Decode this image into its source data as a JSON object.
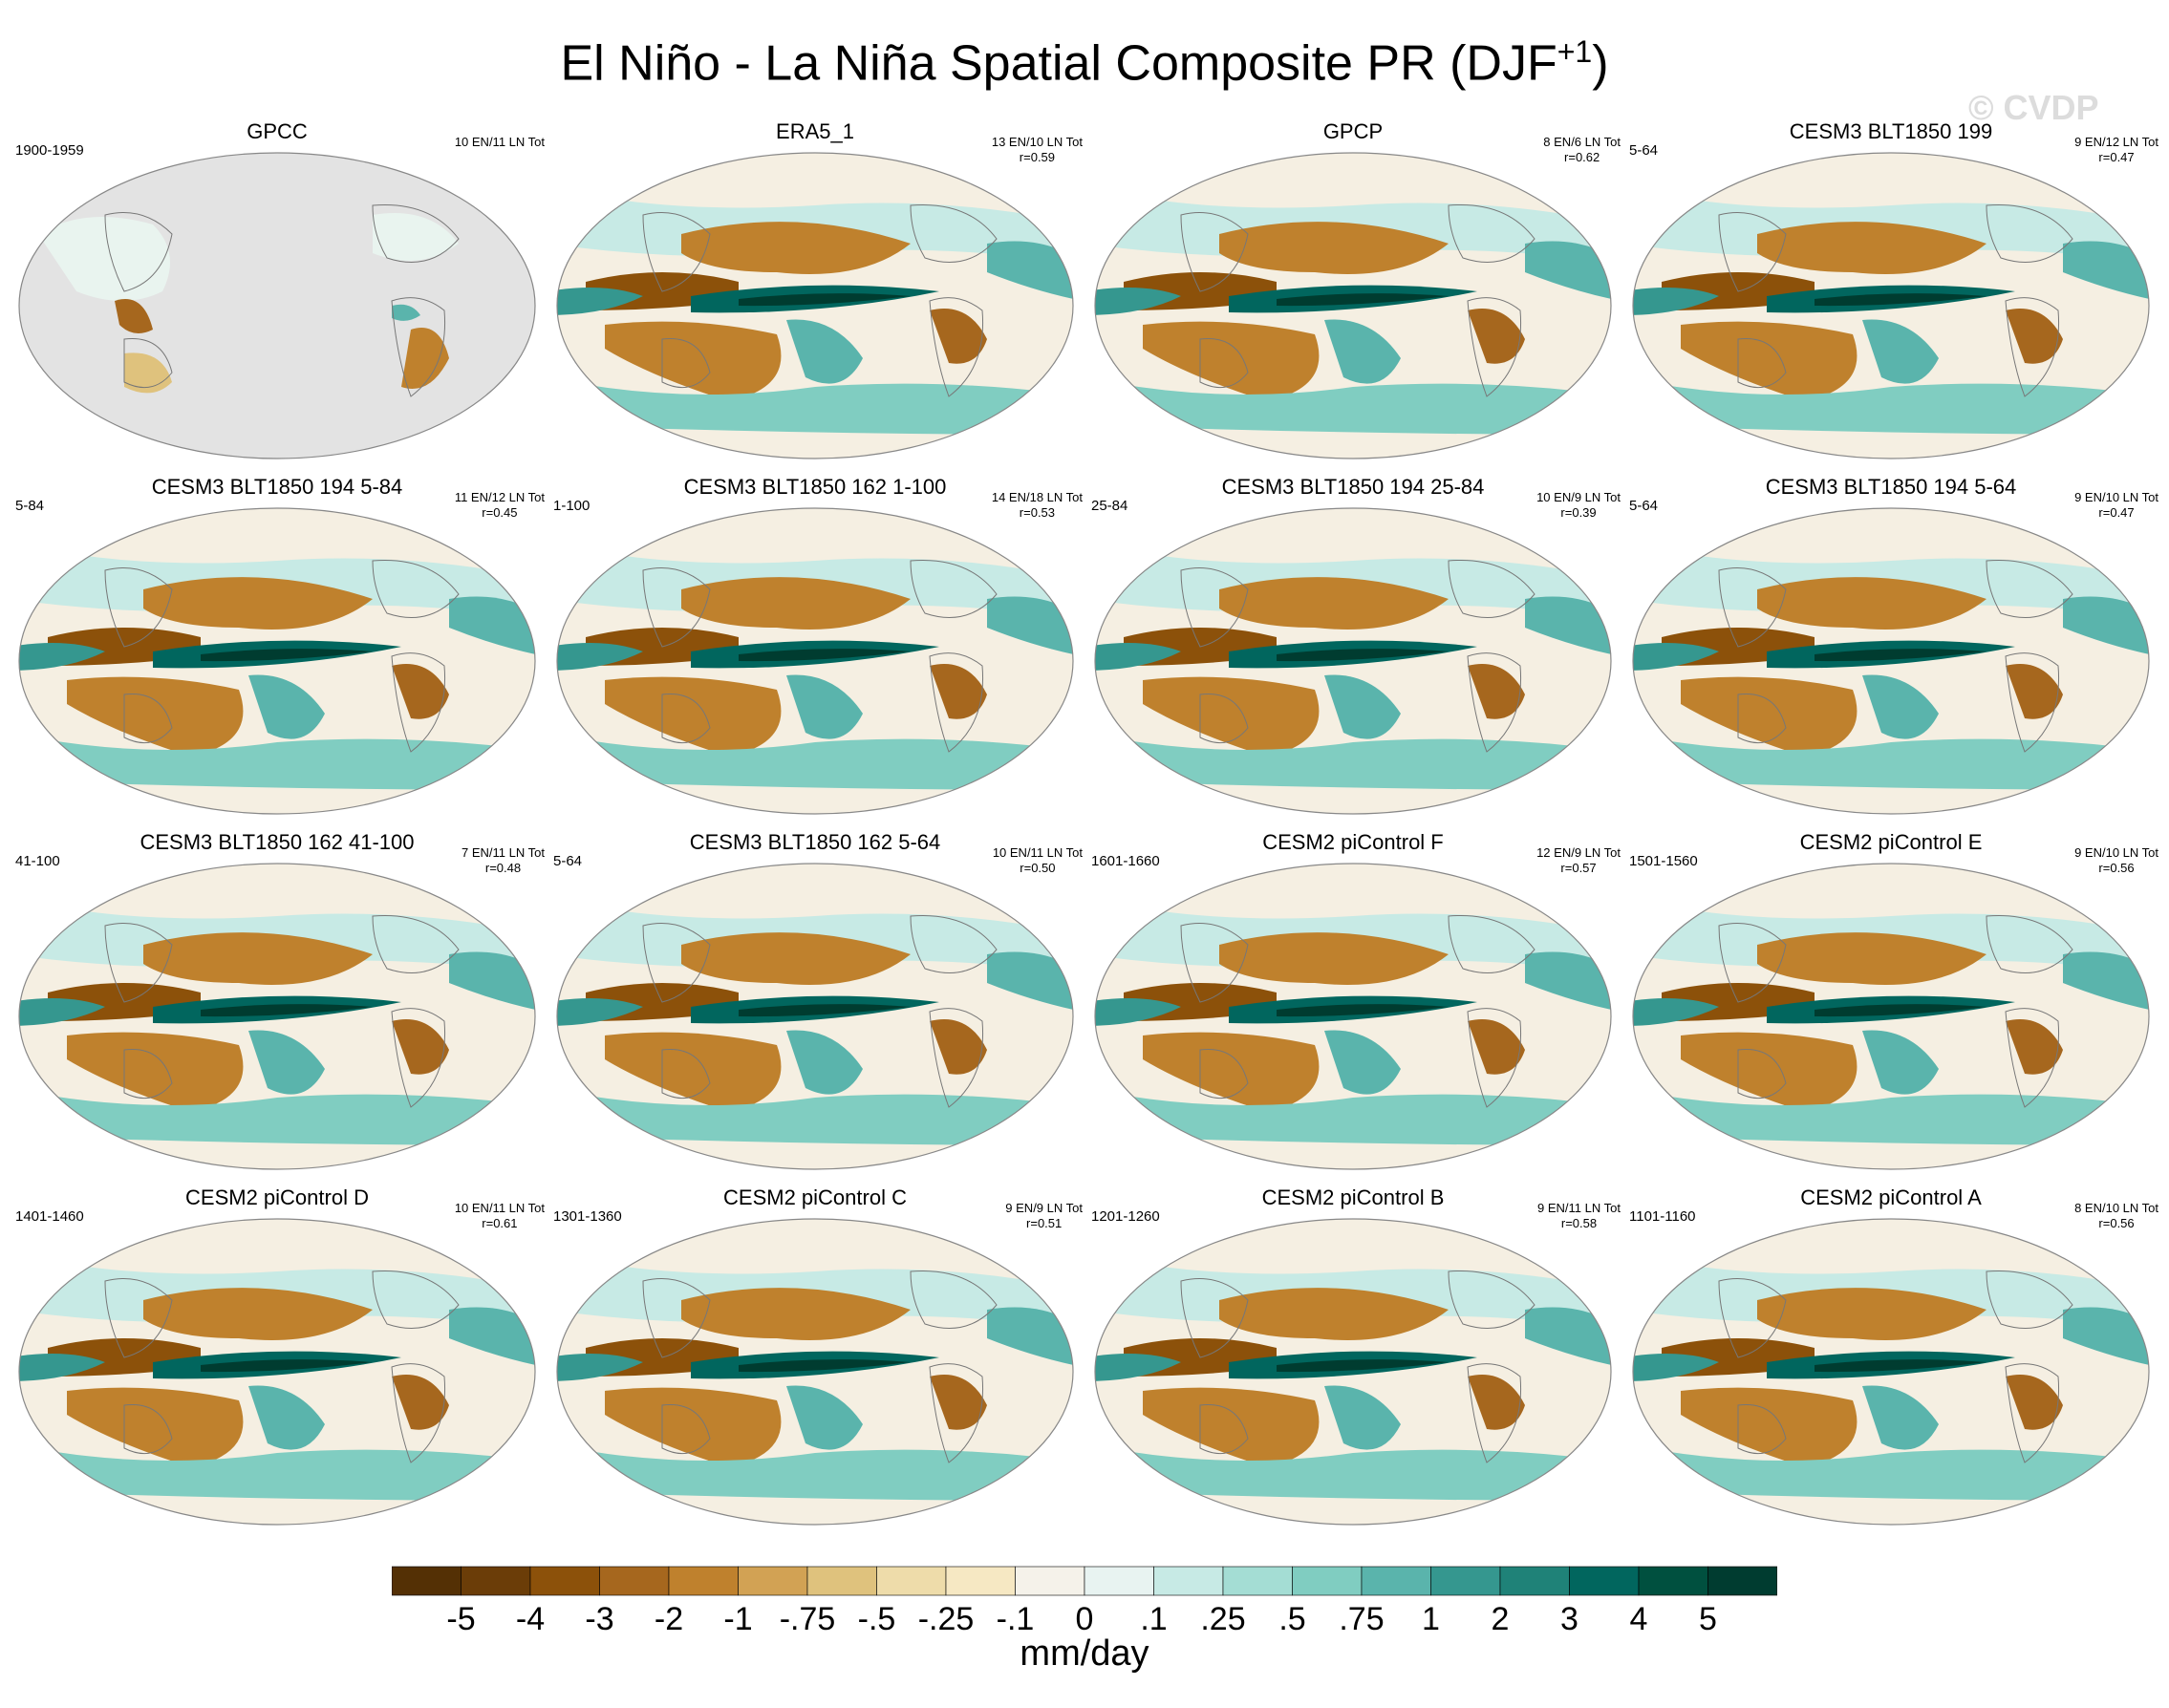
{
  "title": {
    "main": "El Niño - La Niña Spatial Composite PR (DJF",
    "superscript": "+1",
    "close": ")"
  },
  "watermark": "© CVDP",
  "panels": [
    {
      "title": "GPCC",
      "years": "1900-1959",
      "stats": "10 EN/11 LN Tot",
      "r": ""
    },
    {
      "title": "ERA5_1",
      "years": "",
      "stats": "13 EN/10 LN Tot",
      "r": "r=0.59"
    },
    {
      "title": "GPCP",
      "years": "",
      "stats": "8 EN/6 LN Tot",
      "r": "r=0.62"
    },
    {
      "title": "CESM3 BLT1850 199",
      "years": "5-64",
      "stats": "9 EN/12 LN Tot",
      "r": "r=0.47"
    },
    {
      "title": "CESM3 BLT1850 194 5-84",
      "years": "5-84",
      "stats": "11 EN/12 LN Tot",
      "r": "r=0.45"
    },
    {
      "title": "CESM3 BLT1850 162 1-100",
      "years": "1-100",
      "stats": "14 EN/18 LN Tot",
      "r": "r=0.53"
    },
    {
      "title": "CESM3 BLT1850 194 25-84",
      "years": "25-84",
      "stats": "10 EN/9 LN Tot",
      "r": "r=0.39"
    },
    {
      "title": "CESM3 BLT1850 194 5-64",
      "years": "5-64",
      "stats": "9 EN/10 LN Tot",
      "r": "r=0.47"
    },
    {
      "title": "CESM3 BLT1850 162 41-100",
      "years": "41-100",
      "stats": "7 EN/11 LN Tot",
      "r": "r=0.48"
    },
    {
      "title": "CESM3 BLT1850 162 5-64",
      "years": "5-64",
      "stats": "10 EN/11 LN Tot",
      "r": "r=0.50"
    },
    {
      "title": "CESM2 piControl F",
      "years": "1601-1660",
      "stats": "12 EN/9 LN Tot",
      "r": "r=0.57"
    },
    {
      "title": "CESM2 piControl E",
      "years": "1501-1560",
      "stats": "9 EN/10 LN Tot",
      "r": "r=0.56"
    },
    {
      "title": "CESM2 piControl D",
      "years": "1401-1460",
      "stats": "10 EN/11 LN Tot",
      "r": "r=0.61"
    },
    {
      "title": "CESM2 piControl C",
      "years": "1301-1360",
      "stats": "9 EN/9 LN Tot",
      "r": "r=0.51"
    },
    {
      "title": "CESM2 piControl B",
      "years": "1201-1260",
      "stats": "9 EN/11 LN Tot",
      "r": "r=0.58"
    },
    {
      "title": "CESM2 piControl A",
      "years": "1101-1160",
      "stats": "8 EN/10 LN Tot",
      "r": "r=0.56"
    }
  ],
  "colorbar": {
    "label": "mm/day",
    "colors": [
      "#543005",
      "#6b3d08",
      "#8c510a",
      "#a6671e",
      "#bf812d",
      "#d2a254",
      "#dfc27d",
      "#eedcaa",
      "#f6e8c3",
      "#f5f2ea",
      "#e8f3f1",
      "#c7eae5",
      "#a4ddd4",
      "#80cdc1",
      "#5ab4ac",
      "#35978f",
      "#1f8278",
      "#01665e",
      "#00503f",
      "#003c30"
    ],
    "ticks": [
      "-5",
      "-4",
      "-3",
      "-2",
      "-1",
      "-.75",
      "-.5",
      "-.25",
      "-.1",
      "0",
      ".1",
      ".25",
      ".5",
      ".75",
      "1",
      "2",
      "3",
      "4",
      "5"
    ]
  }
}
